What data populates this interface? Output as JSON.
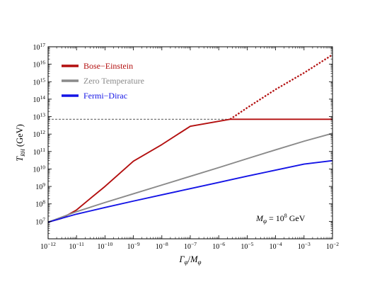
{
  "chart_data": {
    "type": "line",
    "xlabel": "Γ_φ/M_φ",
    "ylabel": "T_RH (GeV)",
    "x_scale": "log",
    "y_scale": "log",
    "xlim": [
      1e-12,
      0.01
    ],
    "ylim": [
      1000000.0,
      1e+17
    ],
    "x_ticks": [
      1e-12,
      1e-11,
      1e-10,
      1e-09,
      1e-08,
      1e-07,
      1e-06,
      1e-05,
      0.0001,
      0.001,
      0.01
    ],
    "y_ticks": [
      10000000.0,
      100000000.0,
      1000000000.0,
      10000000000.0,
      100000000000.0,
      1000000000000.0,
      10000000000000.0,
      100000000000000.0,
      1000000000000000.0,
      1e+16,
      1e+17
    ],
    "legend_position": "top-left",
    "annotation": {
      "prefix": "M",
      "sub": "φ",
      "mid": " = 10",
      "sup": "8",
      "suffix": " GeV"
    },
    "reference_line": {
      "y": 7000000000000.0,
      "style": "dashed",
      "color": "#777777"
    },
    "series": [
      {
        "name": "Bose−Einstein",
        "color": "#b30f0f",
        "x": [
          1e-12,
          3e-12,
          1e-11,
          3e-11,
          1e-10,
          1e-09,
          1e-08,
          1e-07,
          1e-06,
          2.5e-06,
          1e-05,
          0.0001,
          0.001,
          0.01
        ],
        "y": [
          9000000.0,
          15000000.0,
          45000000.0,
          200000000.0,
          1000000000.0,
          28000000000.0,
          250000000000.0,
          2800000000000.0,
          33000000000000.0,
          7000000000000.0,
          7000000000000.0,
          7000000000000.0,
          7000000000000.0,
          7000000000000.0
        ]
      },
      {
        "name": "Bose−Einstein continuation",
        "color": "#b30f0f",
        "dashed": true,
        "x": [
          2.5e-06,
          1e-05,
          0.0001,
          0.001,
          0.01
        ],
        "y": [
          7000000000000.0,
          32000000000000.0,
          360000000000000.0,
          3200000000000000.0,
          3.5e+16
        ]
      },
      {
        "name": "Zero Temperature",
        "color": "#8a8a8a",
        "x": [
          1e-12,
          1e-11,
          1e-10,
          1e-09,
          1e-08,
          1e-07,
          1e-06,
          1e-05,
          0.0001,
          0.001,
          0.01
        ],
        "y": [
          9000000.0,
          36000000.0,
          120000000.0,
          380000000.0,
          1200000000.0,
          3800000000.0,
          12000000000.0,
          39000000000.0,
          125000000000.0,
          390000000000.0,
          1100000000000.0
        ]
      },
      {
        "name": "Fermi−Dirac",
        "color": "#1414e6",
        "x": [
          1e-12,
          1e-11,
          1e-10,
          1e-09,
          1e-08,
          1e-07,
          1e-06,
          1e-05,
          0.0001,
          0.001,
          0.01
        ],
        "y": [
          9000000.0,
          26000000.0,
          62000000.0,
          145000000.0,
          330000000.0,
          750000000.0,
          1700000000.0,
          3900000000.0,
          8600000000.0,
          19000000000.0,
          30000000000.0
        ]
      }
    ]
  }
}
